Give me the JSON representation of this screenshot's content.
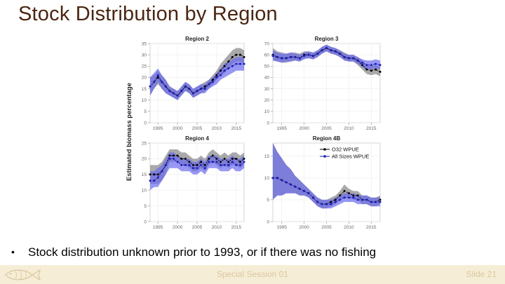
{
  "slide": {
    "title": "Stock Distribution by Region",
    "bullet_symbol": "•",
    "bullet_text": "Stock distribution unknown prior to 1993, or if there was no fishing",
    "footer_center": "Special Session 01",
    "footer_right": "Slide 21"
  },
  "colors": {
    "title": "#4a2511",
    "o32_band": "#9a9a9a",
    "o32_line": "#000000",
    "all_band": "#6b6bef",
    "all_line": "#1c1cb0",
    "footer_bg": "#f6edd6",
    "footer_text": "#d9c79e"
  },
  "chart_data": [
    {
      "type": "line",
      "title": "Region 2",
      "ylabel": "Estimated biomass percentage",
      "xlim": [
        1993,
        2017
      ],
      "ylim": [
        0,
        35
      ],
      "xticks": [
        1995,
        2000,
        2005,
        2010,
        2015
      ],
      "yticks": [
        0,
        5,
        10,
        15,
        20,
        25,
        30,
        35
      ],
      "show_x_tick_labels": true,
      "x": [
        1993,
        1994,
        1995,
        1996,
        1997,
        1998,
        1999,
        2000,
        2001,
        2002,
        2003,
        2004,
        2005,
        2006,
        2007,
        2008,
        2009,
        2010,
        2011,
        2012,
        2013,
        2014,
        2015,
        2016,
        2017
      ],
      "series": [
        {
          "name": "O32 WPUE",
          "values": [
            16,
            18,
            20,
            18,
            16,
            14,
            13,
            12,
            14,
            16,
            15,
            13,
            14,
            15,
            16,
            17,
            19,
            21,
            23,
            25,
            27,
            29,
            30,
            30,
            29
          ],
          "lower": [
            12,
            15,
            17,
            15,
            13,
            12,
            11,
            10,
            12,
            14,
            13,
            11,
            12,
            13,
            14,
            15,
            17,
            19,
            21,
            22,
            24,
            26,
            27,
            27,
            26
          ],
          "upper": [
            20,
            21,
            23,
            21,
            19,
            16,
            15,
            14,
            16,
            18,
            17,
            15,
            16,
            17,
            18,
            19,
            21,
            23,
            26,
            28,
            30,
            32,
            33,
            33,
            32
          ]
        },
        {
          "name": "All Sizes WPUE",
          "values": [
            16,
            18,
            21,
            18,
            16,
            14,
            13,
            12,
            14,
            16,
            15,
            13,
            14,
            15,
            15,
            17,
            18,
            20,
            21,
            23,
            24,
            25,
            26,
            26,
            26
          ],
          "lower": [
            12,
            15,
            18,
            15,
            13,
            12,
            11,
            10,
            12,
            14,
            13,
            11,
            12,
            13,
            13,
            15,
            16,
            17,
            19,
            20,
            21,
            22,
            23,
            23,
            23
          ],
          "upper": [
            20,
            22,
            24,
            21,
            19,
            16,
            15,
            14,
            16,
            18,
            17,
            15,
            16,
            17,
            17,
            19,
            20,
            22,
            24,
            26,
            27,
            28,
            29,
            29,
            29
          ]
        }
      ]
    },
    {
      "type": "line",
      "title": "Region 3",
      "xlim": [
        1993,
        2017
      ],
      "ylim": [
        0,
        70
      ],
      "xticks": [
        1995,
        2000,
        2005,
        2010,
        2015
      ],
      "yticks": [
        0,
        10,
        20,
        30,
        40,
        50,
        60,
        70
      ],
      "show_x_tick_labels": true,
      "x": [
        1993,
        1994,
        1995,
        1996,
        1997,
        1998,
        1999,
        2000,
        2001,
        2002,
        2003,
        2004,
        2005,
        2006,
        2007,
        2008,
        2009,
        2010,
        2011,
        2012,
        2013,
        2014,
        2015,
        2016,
        2017
      ],
      "series": [
        {
          "name": "O32 WPUE",
          "values": [
            60,
            58,
            57,
            57,
            58,
            58,
            57,
            60,
            60,
            59,
            61,
            64,
            66,
            64,
            63,
            61,
            58,
            57,
            57,
            55,
            51,
            47,
            46,
            47,
            45
          ],
          "lower": [
            55,
            54,
            53,
            53,
            54,
            55,
            54,
            57,
            57,
            56,
            58,
            61,
            63,
            61,
            60,
            58,
            55,
            54,
            54,
            51,
            47,
            43,
            42,
            43,
            41
          ],
          "upper": [
            66,
            63,
            62,
            61,
            62,
            62,
            61,
            63,
            63,
            62,
            64,
            67,
            69,
            67,
            66,
            64,
            62,
            60,
            60,
            58,
            55,
            51,
            50,
            51,
            49
          ]
        },
        {
          "name": "All Sizes WPUE",
          "values": [
            59,
            58,
            57,
            57,
            58,
            58,
            57,
            59,
            60,
            59,
            61,
            64,
            66,
            64,
            63,
            61,
            58,
            57,
            57,
            55,
            53,
            51,
            51,
            52,
            51
          ],
          "lower": [
            55,
            54,
            53,
            54,
            54,
            55,
            54,
            56,
            57,
            56,
            58,
            61,
            63,
            61,
            60,
            58,
            55,
            54,
            54,
            52,
            49,
            47,
            47,
            48,
            47
          ],
          "upper": [
            64,
            62,
            61,
            61,
            62,
            61,
            60,
            62,
            63,
            62,
            64,
            67,
            69,
            67,
            66,
            64,
            61,
            60,
            60,
            58,
            56,
            55,
            55,
            56,
            55
          ]
        }
      ]
    },
    {
      "type": "line",
      "title": "Region 4",
      "xlim": [
        1993,
        2017
      ],
      "ylim": [
        0,
        25
      ],
      "xticks": [
        1995,
        2000,
        2005,
        2010,
        2015
      ],
      "yticks": [
        0,
        5,
        10,
        15,
        20,
        25
      ],
      "show_x_tick_labels": true,
      "x": [
        1993,
        1994,
        1995,
        1996,
        1997,
        1998,
        1999,
        2000,
        2001,
        2002,
        2003,
        2004,
        2005,
        2006,
        2007,
        2008,
        2009,
        2010,
        2011,
        2012,
        2013,
        2014,
        2015,
        2016,
        2017
      ],
      "series": [
        {
          "name": "O32 WPUE",
          "values": [
            15,
            15,
            15,
            16,
            18,
            21,
            21,
            21,
            20,
            20,
            19,
            18,
            18,
            19,
            18,
            20,
            21,
            20,
            19,
            20,
            19,
            20,
            20,
            19,
            20
          ],
          "lower": [
            12,
            12,
            12,
            13,
            15,
            19,
            19,
            19,
            18,
            18,
            17,
            16,
            16,
            17,
            16,
            18,
            19,
            18,
            17,
            18,
            17,
            18,
            18,
            17,
            18
          ],
          "upper": [
            18,
            18,
            18,
            19,
            21,
            23,
            23,
            23,
            22,
            22,
            21,
            20,
            20,
            21,
            20,
            22,
            23,
            22,
            21,
            22,
            21,
            22,
            22,
            21,
            22
          ]
        },
        {
          "name": "All Sizes WPUE",
          "values": [
            13,
            13,
            14,
            16,
            18,
            20,
            20,
            19,
            18,
            18,
            18,
            17,
            17,
            18,
            17,
            19,
            19,
            19,
            18,
            18,
            18,
            19,
            18,
            18,
            19
          ],
          "lower": [
            10,
            11,
            11,
            13,
            15,
            17,
            17,
            17,
            16,
            16,
            16,
            15,
            15,
            16,
            15,
            17,
            17,
            17,
            16,
            16,
            16,
            17,
            16,
            16,
            17
          ],
          "upper": [
            16,
            16,
            17,
            18,
            20,
            22,
            22,
            21,
            20,
            20,
            20,
            19,
            19,
            20,
            19,
            21,
            21,
            21,
            20,
            20,
            20,
            21,
            20,
            20,
            21
          ]
        }
      ]
    },
    {
      "type": "line",
      "title": "Region 4B",
      "xlim": [
        1993,
        2017
      ],
      "ylim": [
        0,
        18
      ],
      "xticks": [
        1995,
        2000,
        2005,
        2010,
        2015
      ],
      "yticks": [
        0,
        5,
        10,
        15
      ],
      "show_x_tick_labels": true,
      "legend": {
        "position": "top-right",
        "entries": [
          "O32 WPUE",
          "All Sizes WPUE"
        ]
      },
      "x": [
        1993,
        1994,
        1995,
        1996,
        1997,
        1998,
        1999,
        2000,
        2001,
        2002,
        2003,
        2004,
        2005,
        2006,
        2007,
        2008,
        2009,
        2010,
        2011,
        2012,
        2013,
        2014,
        2015,
        2016,
        2017
      ],
      "series": [
        {
          "name": "O32 WPUE",
          "values": [
            10,
            10,
            9.5,
            9,
            8.5,
            8,
            7.5,
            7,
            6.5,
            5.5,
            4.5,
            4,
            4,
            4.5,
            5,
            6,
            7,
            6.5,
            6,
            6,
            5,
            5,
            4.5,
            4.5,
            5
          ],
          "lower": [
            5,
            6,
            6,
            6.5,
            6.5,
            6.5,
            6,
            6,
            5.5,
            4.5,
            3.5,
            3,
            3,
            3.5,
            4,
            5,
            5.5,
            5.5,
            5,
            5,
            4,
            4,
            3.5,
            3.5,
            4
          ],
          "upper": [
            18,
            16,
            14.5,
            13,
            12,
            10.5,
            9.5,
            8.5,
            7.5,
            6.5,
            5.5,
            5,
            5,
            5.5,
            6,
            7,
            8.5,
            7.5,
            7,
            7,
            6,
            6,
            5.5,
            5.5,
            6
          ]
        },
        {
          "name": "All Sizes WPUE",
          "values": [
            10,
            10,
            9.5,
            9,
            8.5,
            8,
            7.5,
            7,
            6.5,
            5.5,
            4.5,
            4,
            4,
            4,
            4.5,
            5,
            5.5,
            5.5,
            5.5,
            5,
            5,
            5,
            4.5,
            4.5,
            4.5
          ],
          "lower": [
            5,
            6,
            6,
            6.5,
            6.5,
            6.5,
            6,
            6,
            5.5,
            4.5,
            3.5,
            3,
            3,
            3,
            3.5,
            4,
            4.5,
            4.5,
            4.5,
            4,
            4,
            4,
            3.5,
            3.5,
            3.5
          ],
          "upper": [
            18,
            16,
            14.5,
            13,
            12,
            10.5,
            9.5,
            8.5,
            7.5,
            6.5,
            5.5,
            5,
            5,
            5,
            5.5,
            6,
            6.5,
            6.5,
            6.5,
            6,
            6,
            6,
            5.5,
            5.5,
            5.5
          ]
        }
      ]
    }
  ]
}
